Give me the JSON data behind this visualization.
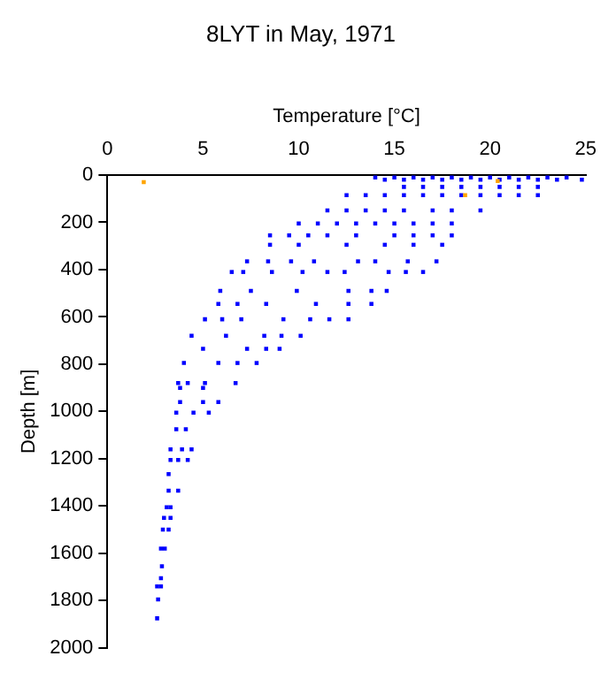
{
  "chart_data": {
    "type": "scatter",
    "title": "8LYT in May, 1971",
    "xlabel": "Temperature [°C]",
    "ylabel": "Depth [m]",
    "xlim": [
      0,
      25
    ],
    "xticks": [
      0,
      5,
      10,
      15,
      20,
      25
    ],
    "ylim": [
      2000,
      0
    ],
    "yticks": [
      0,
      200,
      400,
      600,
      800,
      1000,
      1200,
      1400,
      1600,
      1800,
      2000
    ],
    "grid": false,
    "legend": false,
    "marker": "square",
    "series": [
      {
        "color": "#0000ff",
        "x": [
          14,
          14.5,
          15,
          15.5,
          16,
          16.5,
          17,
          17.5,
          18,
          18.5,
          19,
          19.5,
          20,
          20.5,
          21,
          21.5,
          22,
          22.5,
          23,
          23.5,
          24,
          24.8,
          15.5,
          16.5,
          17.5,
          18.5,
          19.5,
          20.5,
          21.5,
          22.5,
          12.5,
          13.5,
          14.5,
          15.5,
          16.5,
          17.5,
          18.5,
          19.5,
          20.5,
          21.5,
          22.5,
          11.5,
          12.5,
          13.5,
          14.5,
          15.5,
          17,
          18,
          19.5,
          10,
          11,
          12,
          13,
          14,
          15,
          16,
          17,
          18,
          8.5,
          9.5,
          10.5,
          11.5,
          13,
          15,
          16,
          17,
          18,
          8.5,
          10,
          12.5,
          14.5,
          16,
          17.5,
          7.3,
          8.4,
          9.6,
          10.8,
          13.1,
          14,
          15.7,
          17.2,
          6.5,
          7.1,
          8.6,
          10.2,
          11.5,
          12.4,
          14.7,
          15.6,
          16.5,
          5.9,
          7.5,
          9.9,
          12.6,
          13.8,
          14.6,
          5.8,
          6.8,
          8.3,
          10.9,
          12.6,
          13.8,
          5.1,
          6,
          7,
          9.2,
          10.6,
          11.6,
          12.6,
          4.4,
          6.2,
          8.2,
          9.1,
          10.1,
          5,
          7.3,
          8.3,
          9,
          4,
          5.8,
          6.8,
          7.8,
          3.7,
          4.2,
          5.1,
          6.7,
          3.8,
          5,
          3.8,
          5,
          5.8,
          3.6,
          4.5,
          5.3,
          3.6,
          4.1,
          3.3,
          3.9,
          4.4,
          3.3,
          3.7,
          4.2,
          3.2,
          3.2,
          3.7,
          3.1,
          3.3,
          2.96,
          3.3,
          2.9,
          3.2,
          2.8,
          3,
          2.85,
          2.8,
          2.6,
          2.8,
          2.65,
          2.6
        ],
        "values": [
          10,
          20,
          10,
          20,
          10,
          20,
          10,
          20,
          10,
          20,
          10,
          20,
          10,
          20,
          10,
          20,
          10,
          20,
          10,
          20,
          10,
          20,
          50,
          50,
          50,
          50,
          50,
          50,
          50,
          50,
          85,
          85,
          85,
          85,
          85,
          85,
          85,
          85,
          85,
          85,
          85,
          150,
          150,
          150,
          150,
          150,
          150,
          150,
          150,
          205,
          205,
          205,
          205,
          205,
          205,
          205,
          205,
          205,
          255,
          255,
          255,
          255,
          255,
          255,
          255,
          255,
          255,
          295,
          295,
          295,
          295,
          295,
          295,
          365,
          365,
          365,
          365,
          365,
          365,
          365,
          365,
          410,
          410,
          410,
          410,
          410,
          410,
          410,
          410,
          410,
          490,
          490,
          490,
          490,
          490,
          490,
          545,
          545,
          545,
          545,
          545,
          545,
          610,
          610,
          610,
          610,
          610,
          610,
          610,
          680,
          680,
          680,
          680,
          680,
          735,
          735,
          735,
          735,
          795,
          795,
          795,
          795,
          880,
          880,
          880,
          880,
          900,
          900,
          960,
          960,
          960,
          1005,
          1005,
          1005,
          1075,
          1075,
          1160,
          1160,
          1160,
          1205,
          1205,
          1205,
          1265,
          1335,
          1335,
          1405,
          1405,
          1450,
          1450,
          1500,
          1500,
          1580,
          1580,
          1655,
          1705,
          1740,
          1740,
          1795,
          1875
        ]
      },
      {
        "color": "#ffa500",
        "x": [
          1.9,
          20.4,
          18.7
        ],
        "values": [
          30,
          25,
          85
        ]
      }
    ]
  }
}
